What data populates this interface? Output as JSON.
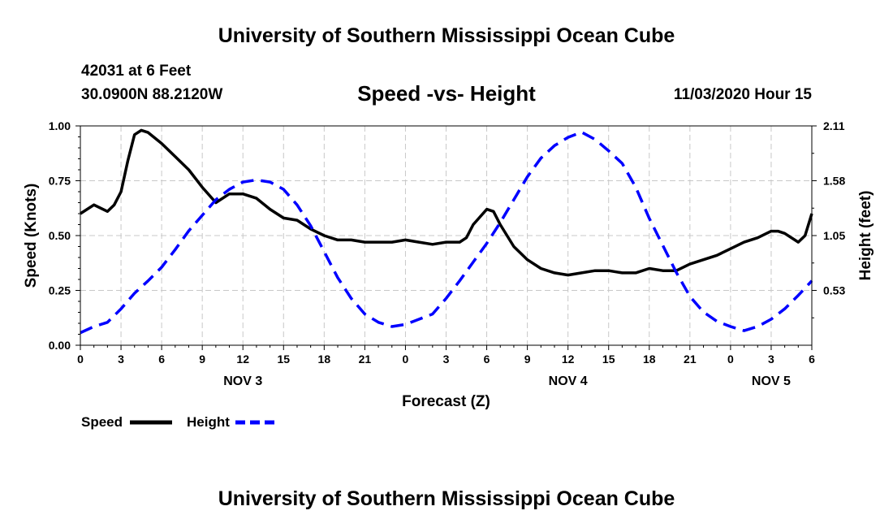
{
  "header": {
    "title": "University of Southern Mississippi Ocean Cube",
    "station": "42031 at 6 Feet",
    "coords": "30.0900N 88.2120W",
    "datetime": "11/03/2020 Hour 15",
    "footer": "University of Southern Mississippi Ocean Cube"
  },
  "chart_data": {
    "type": "line",
    "title": "Speed -vs- Height",
    "xlabel": "Forecast (Z)",
    "ylabel_left": "Speed (Knots)",
    "ylabel_right": "Height (feet)",
    "x_range": [
      0,
      54
    ],
    "x_ticks": [
      {
        "x": 0,
        "label": "0"
      },
      {
        "x": 3,
        "label": "3"
      },
      {
        "x": 6,
        "label": "6"
      },
      {
        "x": 9,
        "label": "9"
      },
      {
        "x": 12,
        "label": "12"
      },
      {
        "x": 15,
        "label": "15"
      },
      {
        "x": 18,
        "label": "18"
      },
      {
        "x": 21,
        "label": "21"
      },
      {
        "x": 24,
        "label": "0"
      },
      {
        "x": 27,
        "label": "3"
      },
      {
        "x": 30,
        "label": "6"
      },
      {
        "x": 33,
        "label": "9"
      },
      {
        "x": 36,
        "label": "12"
      },
      {
        "x": 39,
        "label": "15"
      },
      {
        "x": 42,
        "label": "18"
      },
      {
        "x": 45,
        "label": "21"
      },
      {
        "x": 48,
        "label": "0"
      },
      {
        "x": 51,
        "label": "3"
      },
      {
        "x": 54,
        "label": "6"
      }
    ],
    "date_labels": [
      {
        "x": 12,
        "label": "NOV 3"
      },
      {
        "x": 36,
        "label": "NOV 4"
      },
      {
        "x": 51,
        "label": "NOV 5"
      }
    ],
    "y_left": {
      "range": [
        0,
        1.0
      ],
      "ticks": [
        "0.00",
        "0.25",
        "0.50",
        "0.75",
        "1.00"
      ]
    },
    "y_right": {
      "range": [
        0,
        2.11
      ],
      "ticks": [
        "0.53",
        "1.05",
        "1.58",
        "2.11"
      ]
    },
    "grid": true,
    "legend": "bottom-left",
    "series": [
      {
        "name": "Speed",
        "axis": "left",
        "color": "#000000",
        "style": "solid",
        "x": [
          0,
          1,
          2,
          2.5,
          3,
          3.5,
          4,
          4.5,
          5,
          6,
          7,
          8,
          9,
          10,
          11,
          12,
          13,
          14,
          15,
          16,
          17,
          18,
          19,
          20,
          21,
          22,
          23,
          24,
          25,
          26,
          27,
          28,
          28.5,
          29,
          30,
          30.5,
          31,
          32,
          33,
          34,
          35,
          36,
          37,
          38,
          39,
          40,
          41,
          42,
          43,
          44,
          45,
          46,
          47,
          48,
          49,
          50,
          51,
          51.5,
          52,
          53,
          53.5,
          54
        ],
        "values": [
          0.6,
          0.64,
          0.61,
          0.64,
          0.7,
          0.84,
          0.96,
          0.98,
          0.97,
          0.92,
          0.86,
          0.8,
          0.72,
          0.65,
          0.69,
          0.69,
          0.67,
          0.62,
          0.58,
          0.57,
          0.53,
          0.5,
          0.48,
          0.48,
          0.47,
          0.47,
          0.47,
          0.48,
          0.47,
          0.46,
          0.47,
          0.47,
          0.49,
          0.55,
          0.62,
          0.61,
          0.55,
          0.45,
          0.39,
          0.35,
          0.33,
          0.32,
          0.33,
          0.34,
          0.34,
          0.33,
          0.33,
          0.35,
          0.34,
          0.34,
          0.37,
          0.39,
          0.41,
          0.44,
          0.47,
          0.49,
          0.52,
          0.52,
          0.51,
          0.47,
          0.5,
          0.6
        ]
      },
      {
        "name": "Height",
        "axis": "right",
        "color": "#0000ff",
        "style": "dashed",
        "x": [
          0,
          1,
          2,
          3,
          4,
          5,
          6,
          7,
          8,
          9,
          10,
          11,
          12,
          13,
          14,
          15,
          16,
          17,
          18,
          19,
          20,
          21,
          22,
          23,
          24,
          25,
          26,
          27,
          28,
          29,
          30,
          31,
          32,
          33,
          34,
          35,
          36,
          37,
          38,
          39,
          40,
          41,
          42,
          43,
          44,
          45,
          46,
          47,
          48,
          49,
          50,
          51,
          52,
          53,
          54
        ],
        "values": [
          0.12,
          0.18,
          0.22,
          0.35,
          0.5,
          0.62,
          0.75,
          0.92,
          1.1,
          1.25,
          1.4,
          1.5,
          1.57,
          1.59,
          1.57,
          1.5,
          1.35,
          1.15,
          0.9,
          0.65,
          0.45,
          0.3,
          0.22,
          0.18,
          0.2,
          0.25,
          0.3,
          0.45,
          0.62,
          0.8,
          0.98,
          1.18,
          1.4,
          1.62,
          1.8,
          1.92,
          2.0,
          2.05,
          1.98,
          1.87,
          1.75,
          1.52,
          1.22,
          0.96,
          0.7,
          0.47,
          0.32,
          0.23,
          0.18,
          0.14,
          0.18,
          0.25,
          0.35,
          0.48,
          0.62
        ]
      }
    ]
  }
}
